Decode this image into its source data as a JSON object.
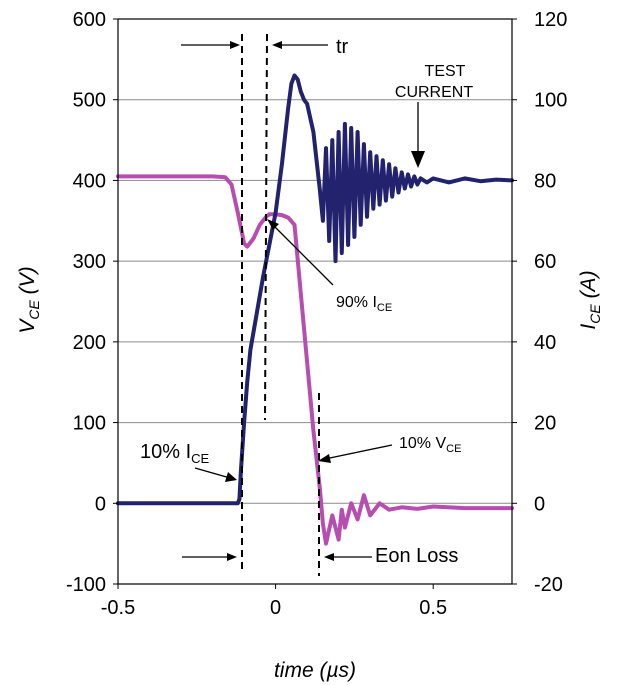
{
  "chart_data": {
    "type": "line",
    "xlabel": "time (µs)",
    "ylabel_left": {
      "main": "V",
      "sub": "CE",
      "unit": " (V)"
    },
    "ylabel_right": {
      "main": "I",
      "sub": "CE",
      "unit": " (A)"
    },
    "xlim": [
      -0.5,
      0.75
    ],
    "ylim_left": [
      -100,
      600
    ],
    "ylim_right": [
      -20,
      120
    ],
    "xticks": [
      "-0.5",
      "0",
      "0.5"
    ],
    "xtick_values": [
      -0.5,
      0,
      0.5
    ],
    "yticks_left": [
      "600",
      "500",
      "400",
      "300",
      "200",
      "100",
      "0",
      "-100"
    ],
    "yticks_left_values": [
      600,
      500,
      400,
      300,
      200,
      100,
      0,
      -100
    ],
    "yticks_right": [
      "120",
      "100",
      "80",
      "60",
      "40",
      "20",
      "0",
      "-20"
    ],
    "yticks_right_values": [
      120,
      100,
      80,
      60,
      40,
      20,
      0,
      -20
    ],
    "grid": "horizontal",
    "series": [
      {
        "name": "VCE",
        "axis": "left",
        "color": "#b84db0",
        "x": [
          -0.5,
          -0.2,
          -0.16,
          -0.14,
          -0.12,
          -0.1,
          -0.09,
          -0.07,
          -0.05,
          -0.03,
          -0.02,
          0.0,
          0.02,
          0.04,
          0.06,
          0.08,
          0.1,
          0.12,
          0.14,
          0.15,
          0.16,
          0.18,
          0.2,
          0.21,
          0.22,
          0.24,
          0.26,
          0.28,
          0.3,
          0.33,
          0.36,
          0.4,
          0.45,
          0.5,
          0.6,
          0.75
        ],
        "y": [
          405,
          405,
          404,
          395,
          360,
          322,
          318,
          328,
          345,
          355,
          358,
          358,
          357,
          354,
          345,
          260,
          175,
          90,
          20,
          -25,
          -50,
          -15,
          -45,
          -8,
          -30,
          0,
          -20,
          10,
          -15,
          0,
          -8,
          -5,
          -7,
          -4,
          -6,
          -6
        ]
      },
      {
        "name": "ICE",
        "axis": "right",
        "color": "#22226e",
        "x": [
          -0.5,
          -0.2,
          -0.15,
          -0.12,
          -0.115,
          -0.11,
          -0.1,
          -0.09,
          -0.08,
          -0.06,
          -0.04,
          -0.02,
          0.0,
          0.02,
          0.04,
          0.05,
          0.06,
          0.07,
          0.08,
          0.09,
          0.1,
          0.12,
          0.14,
          0.15,
          0.16,
          0.17,
          0.18,
          0.19,
          0.2,
          0.21,
          0.22,
          0.23,
          0.24,
          0.25,
          0.26,
          0.27,
          0.28,
          0.29,
          0.3,
          0.31,
          0.32,
          0.33,
          0.34,
          0.35,
          0.36,
          0.37,
          0.38,
          0.39,
          0.4,
          0.41,
          0.42,
          0.43,
          0.44,
          0.45,
          0.46,
          0.48,
          0.5,
          0.55,
          0.6,
          0.65,
          0.7,
          0.75
        ],
        "y": [
          0,
          0,
          0,
          0,
          1,
          8,
          20,
          30,
          38,
          47,
          56,
          64,
          72,
          84,
          98,
          104,
          106,
          105,
          102,
          100,
          99,
          92,
          78,
          70,
          88,
          65,
          90,
          60,
          92,
          62,
          94,
          64,
          93,
          66,
          92,
          69,
          89,
          71,
          87,
          73,
          86,
          74,
          85,
          75,
          84,
          76,
          83,
          77,
          82,
          78,
          81.5,
          78.5,
          81,
          79,
          80.5,
          79.5,
          80.5,
          79.5,
          80.5,
          79.8,
          80.2,
          80
        ]
      }
    ],
    "annotations": {
      "tr": "tr",
      "test_current_1": "TEST",
      "test_current_2": "CURRENT",
      "i90": {
        "main": "90% I",
        "sub": "CE"
      },
      "i10": {
        "main": "10% I",
        "sub": "CE"
      },
      "v10": {
        "main": "10% V",
        "sub": "CE"
      },
      "eon": "Eon Loss"
    }
  }
}
